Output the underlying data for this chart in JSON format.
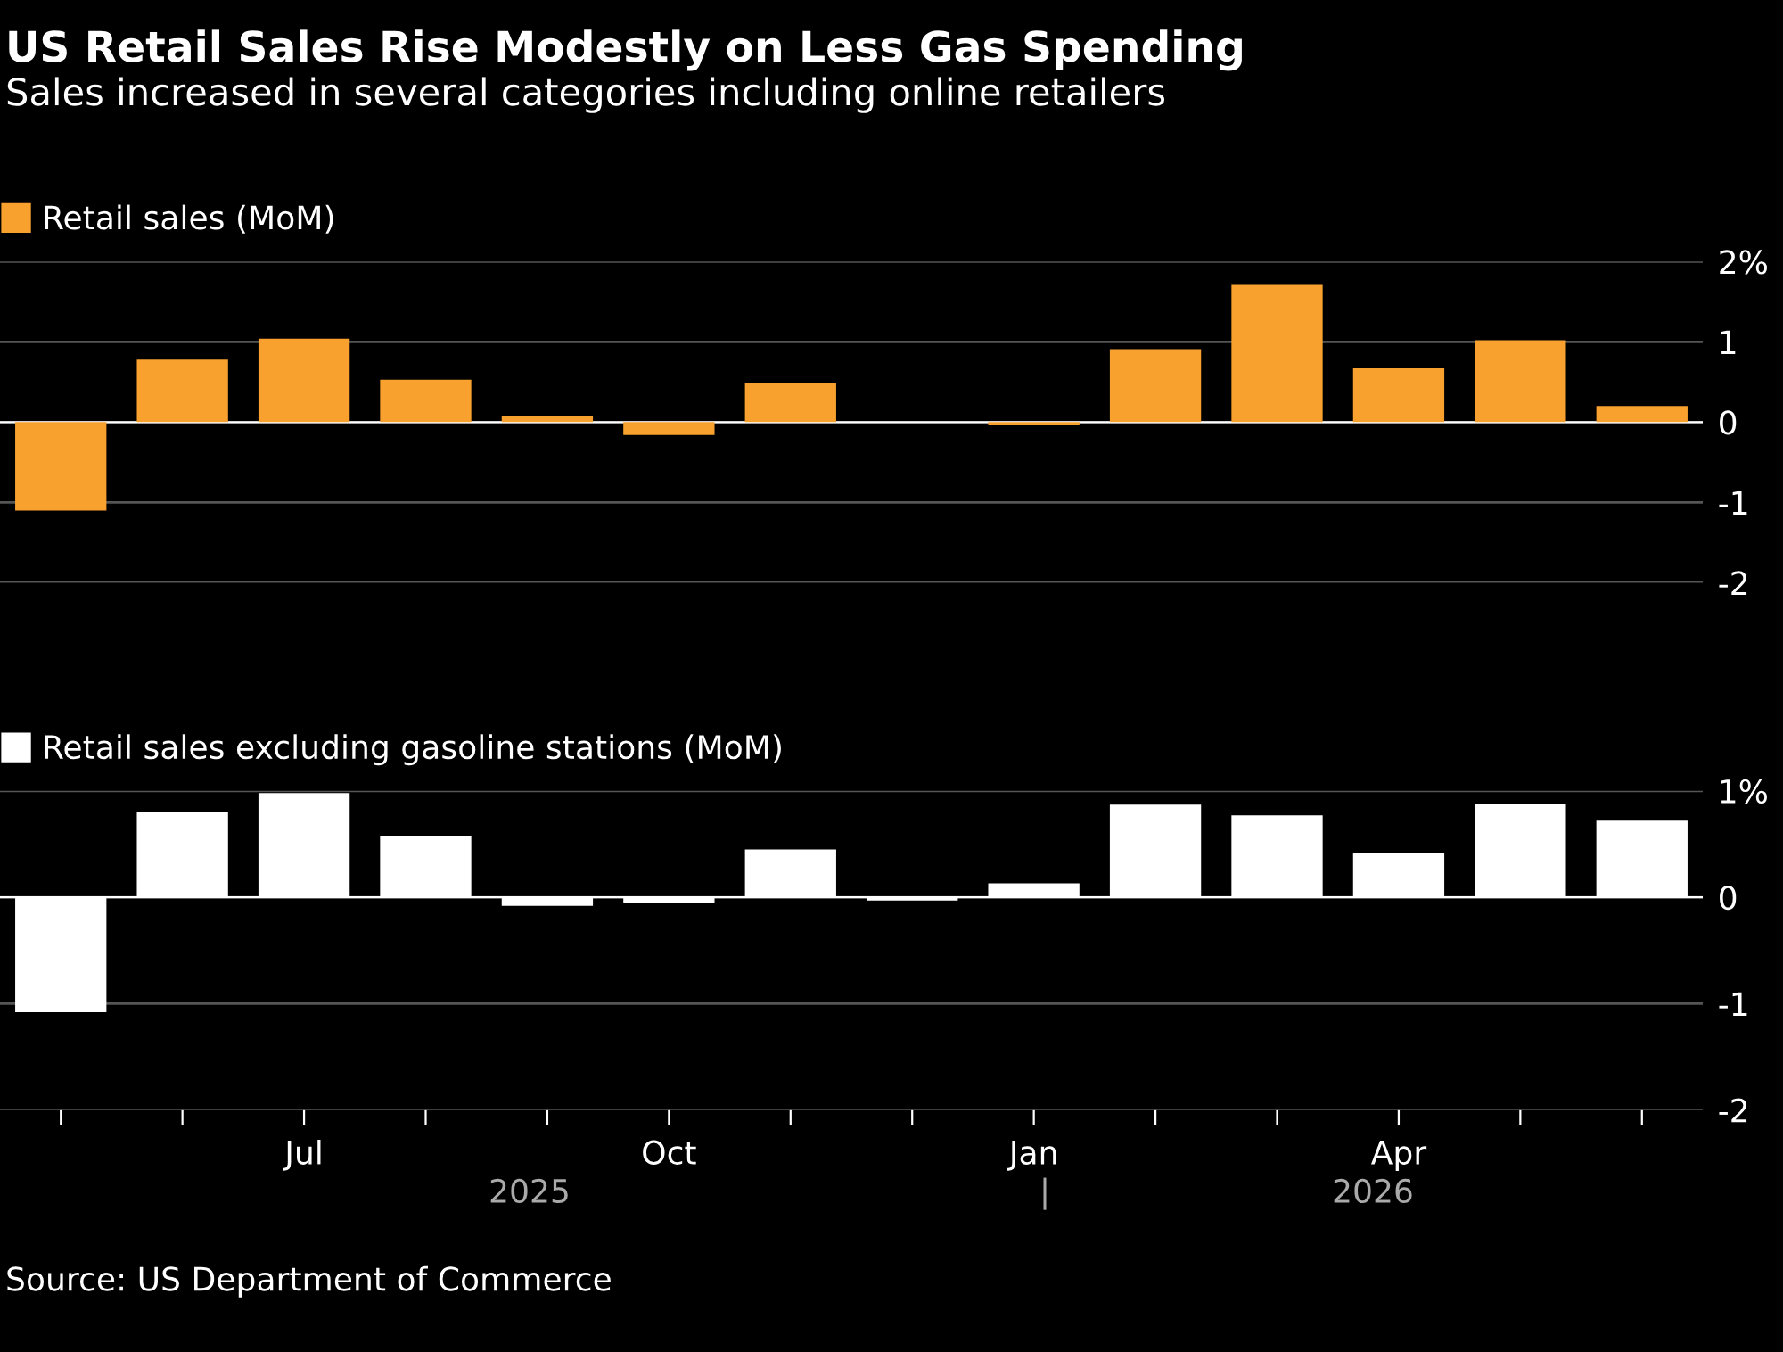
{
  "chart_data": [
    {
      "type": "bar",
      "title": "US Retail Sales Rise Modestly on Less Gas Spending",
      "subtitle": "Sales increased in several categories including online retailers",
      "series": [
        {
          "name": "Retail sales (MoM)",
          "color": "#f9a12e",
          "values": [
            -1.1,
            0.78,
            1.04,
            0.53,
            0.07,
            -0.16,
            0.49,
            null,
            -0.04,
            0.91,
            1.71,
            0.67,
            1.02,
            0.2
          ]
        }
      ],
      "ylim": [
        -2,
        2
      ],
      "yticks": [
        {
          "value": 2,
          "label": "2%"
        },
        1,
        0,
        -1,
        -2
      ],
      "grid": "y",
      "legend": "top left"
    },
    {
      "type": "bar",
      "categories": [
        null,
        null,
        "Jul",
        null,
        null,
        "Oct",
        null,
        null,
        "Jan",
        null,
        null,
        "Apr",
        null,
        null
      ],
      "series": [
        {
          "name": "Retail sales excluding gasoline stations (MoM)",
          "color": "#ffffff",
          "values": [
            -1.08,
            0.8,
            0.98,
            0.58,
            -0.08,
            -0.05,
            0.45,
            -0.03,
            0.13,
            0.87,
            0.77,
            0.42,
            0.88,
            0.72
          ]
        }
      ],
      "ylim": [
        -2,
        1
      ],
      "yticks": [
        {
          "value": 1,
          "label": "1%"
        },
        0,
        -1,
        -2
      ],
      "grid": "y",
      "legend": "top left",
      "annotations": [
        "2025",
        "|",
        "2026",
        "Source: US Department of Commerce"
      ]
    }
  ]
}
